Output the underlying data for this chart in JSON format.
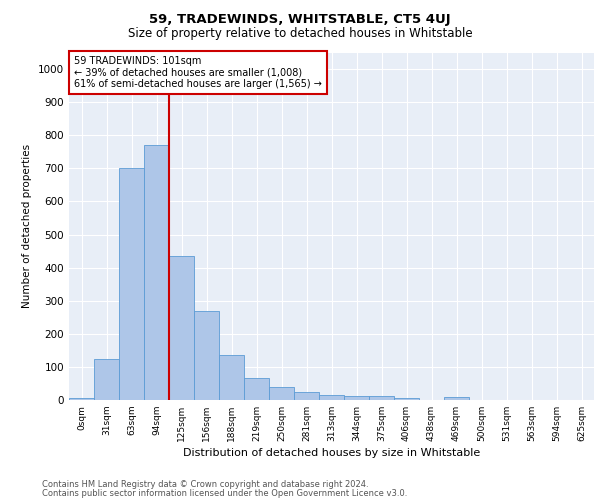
{
  "title": "59, TRADEWINDS, WHITSTABLE, CT5 4UJ",
  "subtitle": "Size of property relative to detached houses in Whitstable",
  "xlabel": "Distribution of detached houses by size in Whitstable",
  "ylabel": "Number of detached properties",
  "bar_labels": [
    "0sqm",
    "31sqm",
    "63sqm",
    "94sqm",
    "125sqm",
    "156sqm",
    "188sqm",
    "219sqm",
    "250sqm",
    "281sqm",
    "313sqm",
    "344sqm",
    "375sqm",
    "406sqm",
    "438sqm",
    "469sqm",
    "500sqm",
    "531sqm",
    "563sqm",
    "594sqm",
    "625sqm"
  ],
  "bar_values": [
    5,
    125,
    700,
    770,
    435,
    270,
    135,
    65,
    38,
    25,
    15,
    12,
    12,
    5,
    0,
    8,
    0,
    0,
    0,
    0,
    0
  ],
  "bar_color": "#aec6e8",
  "bar_edge_color": "#5b9bd5",
  "background_color": "#e8eef7",
  "vline_x": 3.5,
  "vline_color": "#cc0000",
  "annotation_text": "59 TRADEWINDS: 101sqm\n← 39% of detached houses are smaller (1,008)\n61% of semi-detached houses are larger (1,565) →",
  "annotation_box_color": "#ffffff",
  "annotation_edge_color": "#cc0000",
  "ylim": [
    0,
    1050
  ],
  "yticks": [
    0,
    100,
    200,
    300,
    400,
    500,
    600,
    700,
    800,
    900,
    1000
  ],
  "footer1": "Contains HM Land Registry data © Crown copyright and database right 2024.",
  "footer2": "Contains public sector information licensed under the Open Government Licence v3.0."
}
